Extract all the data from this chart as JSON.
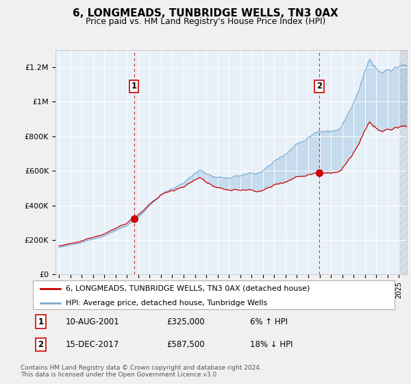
{
  "title": "6, LONGMEADS, TUNBRIDGE WELLS, TN3 0AX",
  "subtitle": "Price paid vs. HM Land Registry's House Price Index (HPI)",
  "legend_line1": "6, LONGMEADS, TUNBRIDGE WELLS, TN3 0AX (detached house)",
  "legend_line2": "HPI: Average price, detached house, Tunbridge Wells",
  "annotation1_label": "1",
  "annotation1_date": "10-AUG-2001",
  "annotation1_price": "£325,000",
  "annotation1_hpi": "6% ↑ HPI",
  "annotation2_label": "2",
  "annotation2_date": "15-DEC-2017",
  "annotation2_price": "£587,500",
  "annotation2_hpi": "18% ↓ HPI",
  "footer1": "Contains HM Land Registry data © Crown copyright and database right 2024.",
  "footer2": "This data is licensed under the Open Government Licence v3.0.",
  "price_color": "#cc0000",
  "hpi_color": "#7aadd4",
  "hpi_fill_color": "#ddeeff",
  "background_color": "#f0f0f0",
  "plot_bg_color": "#e8f0f8",
  "ylim": [
    0,
    1300000
  ],
  "yticks": [
    0,
    200000,
    400000,
    600000,
    800000,
    1000000,
    1200000
  ],
  "ytick_labels": [
    "£0",
    "£200K",
    "£400K",
    "£600K",
    "£800K",
    "£1M",
    "£1.2M"
  ],
  "sale1_year": 2001.625,
  "sale1_price": 325000,
  "sale2_year": 2017.958,
  "sale2_price": 587500
}
